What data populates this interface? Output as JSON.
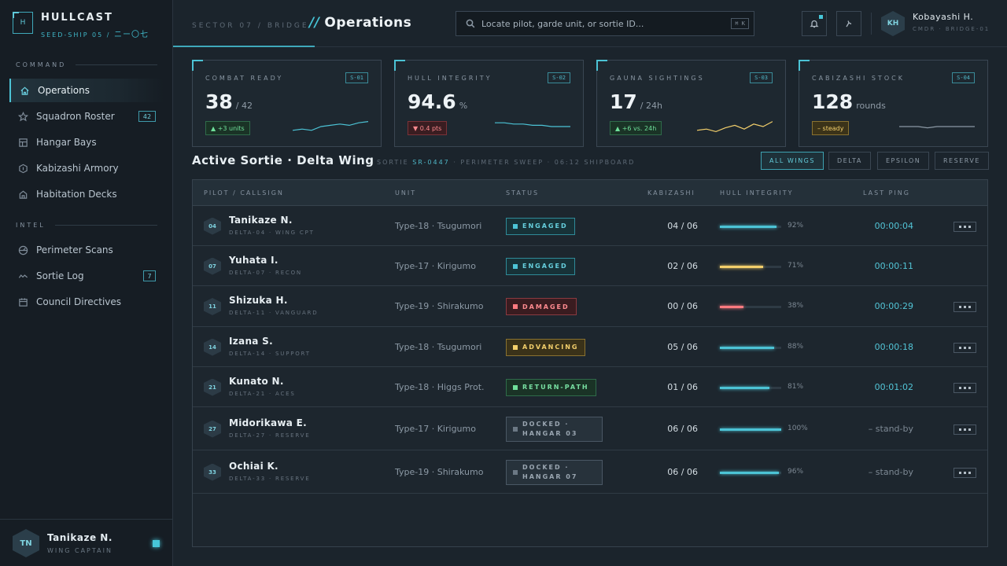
{
  "brand": {
    "name": "HULLCAST",
    "mark": "H",
    "subtitle": "SEED-SHIP 05 /",
    "subtitle_kana": "ニー〇七"
  },
  "sidebar": {
    "sections": [
      {
        "label": "COMMAND"
      },
      {
        "label": "INTEL"
      }
    ],
    "items": [
      {
        "label": "Operations",
        "icon": "home-icon",
        "active": true
      },
      {
        "label": "Squadron Roster",
        "icon": "star-icon",
        "badge": "42"
      },
      {
        "label": "Hangar Bays",
        "icon": "grid-icon"
      },
      {
        "label": "Kabizashi Armory",
        "icon": "hexagon-icon"
      },
      {
        "label": "Habitation Decks",
        "icon": "house-icon"
      },
      {
        "label": "Perimeter Scans",
        "icon": "radar-icon"
      },
      {
        "label": "Sortie Log",
        "icon": "wave-icon",
        "badge": "7"
      },
      {
        "label": "Council Directives",
        "icon": "calendar-icon"
      }
    ],
    "footer": {
      "initials": "TN",
      "name": "Tanikaze N.",
      "role": "WING CAPTAIN"
    }
  },
  "header": {
    "crumb_a": "SECTOR 07",
    "crumb_sep": "/",
    "crumb_b": "BRIDGE",
    "title_slash": "//",
    "title": "Operations",
    "search_placeholder": "Locate pilot, garde unit, or sortie ID...",
    "search_kbd": "⌘ K",
    "user": {
      "initials": "KH",
      "name": "Kobayashi H.",
      "role": "CMDR · BRIDGE-01"
    }
  },
  "cards": [
    {
      "label": "COMBAT READY",
      "code": "S-01",
      "value": "38",
      "unit": "/ 42",
      "delta": "▲ +3 units",
      "delta_type": "up",
      "spark_color": "#4cc3d5",
      "spark": [
        2,
        3,
        2,
        5,
        6,
        7,
        6,
        8,
        9
      ]
    },
    {
      "label": "HULL INTEGRITY",
      "code": "S-02",
      "value": "94.6",
      "unit": "%",
      "delta": "▼ 0.4 pts",
      "delta_type": "down",
      "spark_color": "#4cc3d5",
      "spark": [
        8,
        8,
        7,
        7,
        6,
        6,
        5,
        5,
        5
      ]
    },
    {
      "label": "GAUNA SIGHTINGS",
      "code": "S-03",
      "value": "17",
      "unit": "/ 24h",
      "delta": "▲ +6 vs. 24h",
      "delta_type": "up",
      "spark_color": "#f3cf6b",
      "spark": [
        2,
        3,
        1,
        4,
        6,
        3,
        7,
        5,
        9
      ]
    },
    {
      "label": "CABIZASHI STOCK",
      "code": "S-04",
      "value": "128",
      "unit": "rounds",
      "delta": "– steady",
      "delta_type": "flat",
      "spark_color": "#8c99a5",
      "spark": [
        5,
        5,
        5,
        4,
        5,
        5,
        5,
        5,
        5
      ]
    }
  ],
  "sortie": {
    "title": "Active Sortie · Delta Wing",
    "meta_label": "SORTIE",
    "meta_id": "SR-0447",
    "meta_rest": "· PERIMETER SWEEP · 06:12 SHIPBOARD",
    "filters": [
      {
        "label": "ALL WINGS",
        "active": true
      },
      {
        "label": "DELTA"
      },
      {
        "label": "EPSILON"
      },
      {
        "label": "RESERVE"
      }
    ]
  },
  "table": {
    "headers": [
      "PILOT / CALLSIGN",
      "UNIT",
      "STATUS",
      "KABIZASHI",
      "HULL INTEGRITY",
      "LAST PING"
    ],
    "rows": [
      {
        "num": "04",
        "name": "Tanikaze N.",
        "call": "DELTA-04 · WING CPT",
        "unit": "Type-18 · Tsugumori",
        "status": "ENGAGED",
        "status_type": "engaged",
        "kab": "04 / 06",
        "hull": 92,
        "hull_label": "92%",
        "hull_color": "#4cc3d5",
        "ping": "00:00:04",
        "more": true
      },
      {
        "num": "07",
        "name": "Yuhata I.",
        "call": "DELTA-07 · RECON",
        "unit": "Type-17 · Kirigumo",
        "status": "ENGAGED",
        "status_type": "engaged",
        "kab": "02 / 06",
        "hull": 71,
        "hull_label": "71%",
        "hull_color": "#f3cf6b",
        "ping": "00:00:11",
        "more": false
      },
      {
        "num": "11",
        "name": "Shizuka H.",
        "call": "DELTA-11 · VANGUARD",
        "unit": "Type-19 · Shirakumo",
        "status": "DAMAGED",
        "status_type": "damaged",
        "kab": "00 / 06",
        "hull": 38,
        "hull_label": "38%",
        "hull_color": "#ff7a80",
        "ping": "00:00:29",
        "more": true
      },
      {
        "num": "14",
        "name": "Izana S.",
        "call": "DELTA-14 · SUPPORT",
        "unit": "Type-18 · Tsugumori",
        "status": "ADVANCING",
        "status_type": "advancing",
        "kab": "05 / 06",
        "hull": 88,
        "hull_label": "88%",
        "hull_color": "#4cc3d5",
        "ping": "00:00:18",
        "more": true
      },
      {
        "num": "21",
        "name": "Kunato N.",
        "call": "DELTA-21 · ACES",
        "unit": "Type-18 · Higgs Prot.",
        "status": "RETURN-PATH",
        "status_type": "return",
        "kab": "01 / 06",
        "hull": 81,
        "hull_label": "81%",
        "hull_color": "#4cc3d5",
        "ping": "00:01:02",
        "more": true
      },
      {
        "num": "27",
        "name": "Midorikawa E.",
        "call": "DELTA-27 · RESERVE",
        "unit": "Type-17 · Kirigumo",
        "status": "DOCKED ·",
        "status_line2": "HANGAR 03",
        "status_type": "docked",
        "kab": "06 / 06",
        "hull": 100,
        "hull_label": "100%",
        "hull_color": "#4cc3d5",
        "ping": "– stand-by",
        "standby": true,
        "more": true
      },
      {
        "num": "33",
        "name": "Ochiai K.",
        "call": "DELTA-33 · RESERVE",
        "unit": "Type-19 · Shirakumo",
        "status": "DOCKED ·",
        "status_line2": "HANGAR 07",
        "status_type": "docked",
        "kab": "06 / 06",
        "hull": 96,
        "hull_label": "96%",
        "hull_color": "#4cc3d5",
        "ping": "– stand-by",
        "standby": true,
        "more": true
      }
    ]
  }
}
